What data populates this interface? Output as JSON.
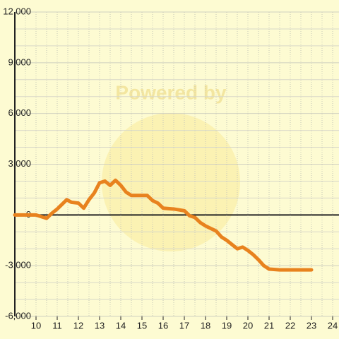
{
  "chart_data": {
    "type": "line",
    "watermark": "Powered by",
    "x": [
      9,
      10,
      10.25,
      10.5,
      10.75,
      11,
      11.45,
      11.67,
      12,
      12.25,
      12.5,
      12.75,
      13,
      13.25,
      13.5,
      13.75,
      14,
      14.25,
      14.5,
      15,
      15.25,
      15.5,
      15.75,
      16,
      16.5,
      17,
      17.25,
      17.5,
      17.75,
      18,
      18.5,
      18.75,
      19,
      19.25,
      19.5,
      19.75,
      20,
      20.25,
      20.5,
      20.75,
      21,
      21.5,
      23
    ],
    "series": [
      {
        "color": "#e8821e",
        "values": [
          0,
          0,
          -100,
          -200,
          100,
          350,
          900,
          750,
          700,
          400,
          900,
          1300,
          1900,
          2000,
          1750,
          2050,
          1750,
          1350,
          1150,
          1150,
          1150,
          850,
          700,
          400,
          350,
          250,
          -50,
          -150,
          -450,
          -650,
          -950,
          -1300,
          -1500,
          -1750,
          -2000,
          -1900,
          -2100,
          -2350,
          -2650,
          -3000,
          -3200,
          -3250,
          -3250
        ]
      }
    ],
    "xlim": [
      9,
      24.3
    ],
    "xticks": [
      10,
      11,
      12,
      13,
      14,
      15,
      16,
      17,
      18,
      19,
      20,
      21,
      22,
      23,
      24
    ],
    "ylim": [
      -6000,
      12000
    ],
    "yticks": [
      {
        "value": -6000,
        "label": "-6,000"
      },
      {
        "value": -3000,
        "label": "-3,000"
      },
      0,
      {
        "value": 3000,
        "label": "3,000"
      },
      {
        "value": 6000,
        "label": "6,000"
      },
      {
        "value": 9000,
        "label": "9,000"
      },
      {
        "value": 12000,
        "label": "12,000"
      }
    ],
    "grid": true
  }
}
